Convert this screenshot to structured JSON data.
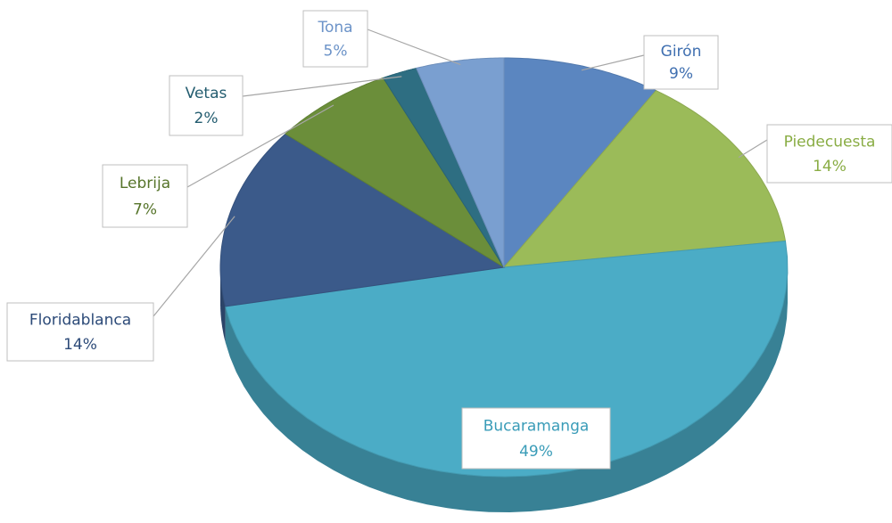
{
  "chart_data": {
    "type": "pie",
    "categories": [
      "Girón",
      "Piedecuesta",
      "Bucaramanga",
      "Floridablanca",
      "Lebrija",
      "Vetas",
      "Tona"
    ],
    "values": [
      9,
      14,
      49,
      14,
      7,
      2,
      5
    ],
    "value_labels": [
      "9%",
      "14%",
      "49%",
      "14%",
      "7%",
      "2%",
      "5%"
    ],
    "colors": [
      "#5b86c0",
      "#9bbb59",
      "#4bacc6",
      "#3b5a8a",
      "#6b8e3a",
      "#2e6e82",
      "#7a9fd0"
    ],
    "label_colors": [
      "#3f6fb0",
      "#8aad45",
      "#3a9cb8",
      "#2c4a78",
      "#56742a",
      "#245d70",
      "#6c93c8"
    ]
  }
}
